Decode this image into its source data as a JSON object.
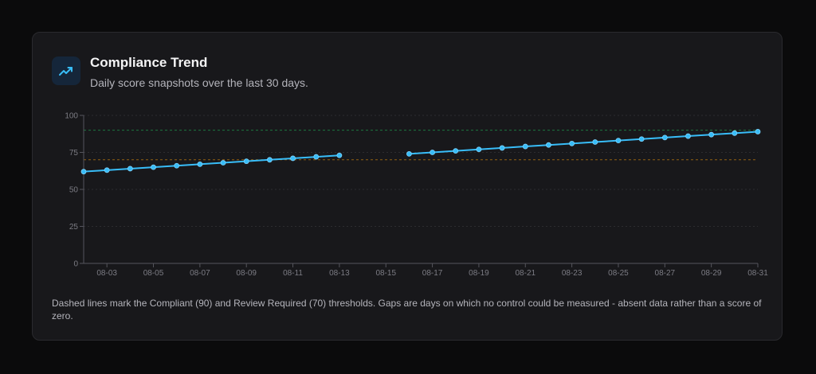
{
  "card": {
    "title": "Compliance Trend",
    "subtitle": "Daily score snapshots over the last 30 days.",
    "icon": "trending-up-icon",
    "note": "Dashed lines mark the Compliant (90) and Review Required (70) thresholds. Gaps are days on which no control could be measured - absent data rather than a score of zero."
  },
  "colors": {
    "background": "#0b0b0c",
    "card": "#18181b",
    "line": "#38bdf8",
    "compliant_threshold": "#22c55e",
    "review_threshold": "#f59e0b"
  },
  "chart_data": {
    "type": "line",
    "title": "",
    "xlabel": "",
    "ylabel": "",
    "x": [
      "08-02",
      "08-03",
      "08-04",
      "08-05",
      "08-06",
      "08-07",
      "08-08",
      "08-09",
      "08-10",
      "08-11",
      "08-12",
      "08-13",
      "08-14",
      "08-15",
      "08-16",
      "08-17",
      "08-18",
      "08-19",
      "08-20",
      "08-21",
      "08-22",
      "08-23",
      "08-24",
      "08-25",
      "08-26",
      "08-27",
      "08-28",
      "08-29",
      "08-30",
      "08-31"
    ],
    "values": [
      62,
      63,
      64,
      65,
      66,
      67,
      68,
      69,
      70,
      71,
      72,
      73,
      null,
      null,
      74,
      75,
      76,
      77,
      78,
      79,
      80,
      81,
      82,
      83,
      84,
      85,
      86,
      87,
      88,
      89
    ],
    "x_tick_labels": [
      "08-03",
      "08-05",
      "08-07",
      "08-09",
      "08-11",
      "08-13",
      "08-15",
      "08-17",
      "08-19",
      "08-21",
      "08-23",
      "08-25",
      "08-27",
      "08-29",
      "08-31"
    ],
    "y_ticks": [
      0,
      25,
      50,
      75,
      100
    ],
    "ylim": [
      0,
      100
    ],
    "thresholds": [
      {
        "label": "Compliant",
        "value": 90
      },
      {
        "label": "Review Required",
        "value": 70
      }
    ],
    "grid": true,
    "legend": "none"
  }
}
